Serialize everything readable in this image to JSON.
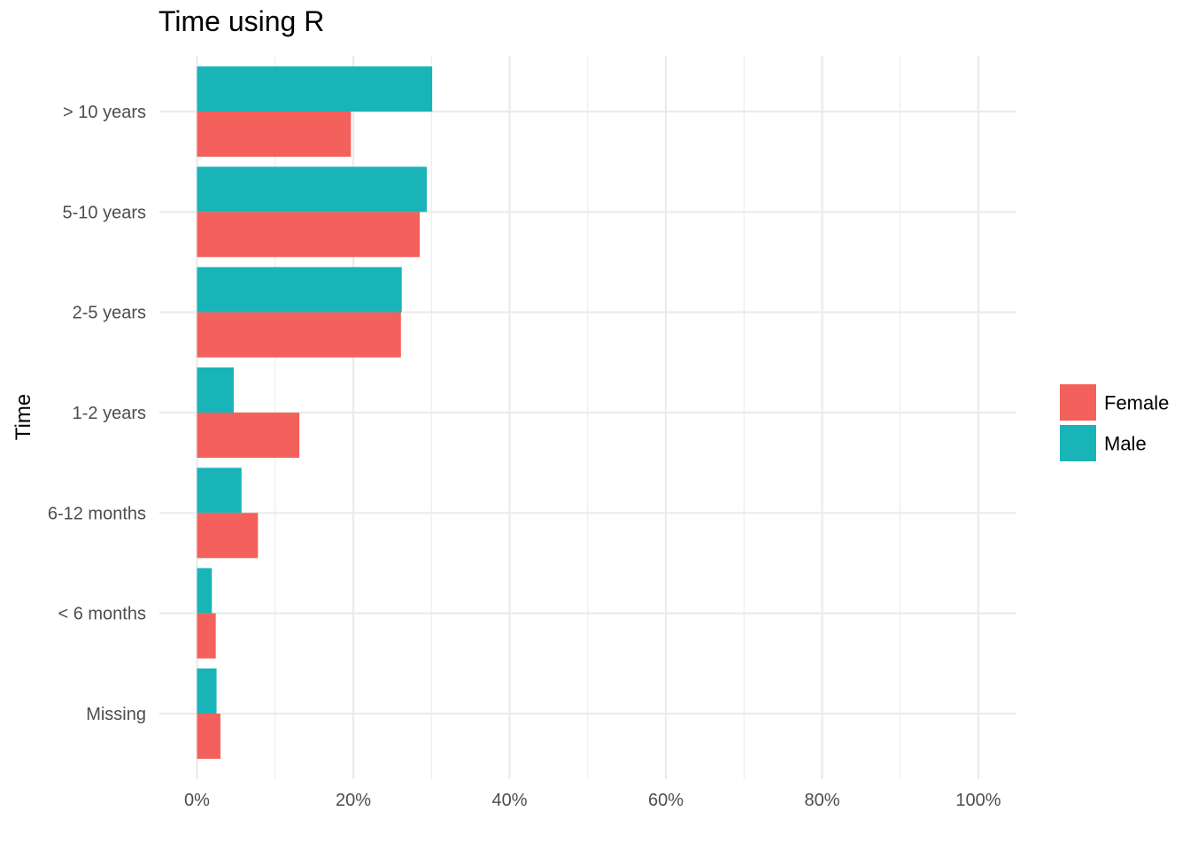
{
  "chart_data": {
    "type": "bar",
    "orientation": "horizontal",
    "title": "Time using R",
    "xlabel": "",
    "ylabel": "Time",
    "categories": [
      "> 10 years",
      "5-10 years",
      "2-5 years",
      "1-2 years",
      "6-12 months",
      "< 6 months",
      "Missing"
    ],
    "series": [
      {
        "name": "Male",
        "color": "#19B4B7",
        "values": [
          30.1,
          29.4,
          26.2,
          4.7,
          5.7,
          1.9,
          2.5
        ]
      },
      {
        "name": "Female",
        "color": "#F4605C",
        "values": [
          19.7,
          28.5,
          26.1,
          13.1,
          7.8,
          2.4,
          3.0
        ]
      }
    ],
    "xlim": [
      0,
      100
    ],
    "x_ticks": [
      0,
      20,
      40,
      60,
      80,
      100
    ],
    "x_tick_labels": [
      "0%",
      "20%",
      "40%",
      "60%",
      "80%",
      "100%"
    ],
    "grid": true,
    "legend": {
      "position": "right",
      "entries": [
        {
          "label": "Female",
          "color": "#F4605C"
        },
        {
          "label": "Male",
          "color": "#19B4B7"
        }
      ]
    }
  }
}
